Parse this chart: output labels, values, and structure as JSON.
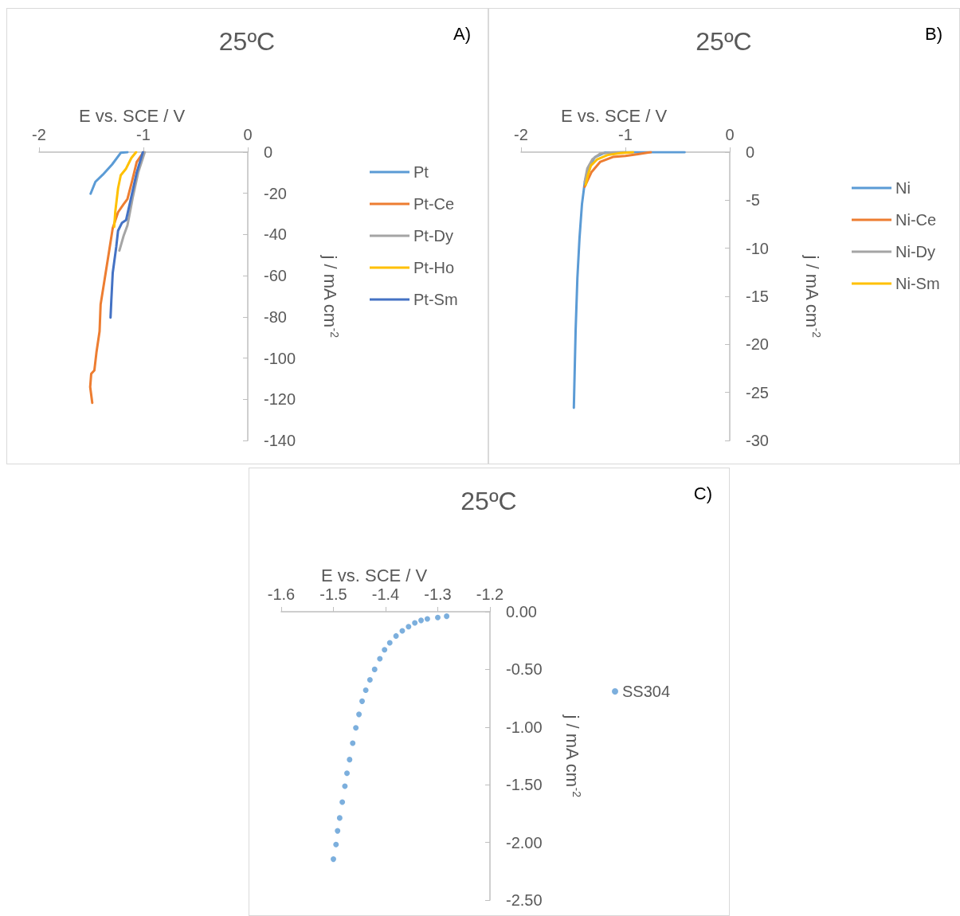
{
  "chart_data": [
    {
      "type": "line",
      "title": "25ºC",
      "annotations": [
        "A)"
      ],
      "xlabel": "E vs. SCE / V",
      "ylabel": "j / mA cm$^{-2}$",
      "xlim": [
        -2,
        0
      ],
      "xticks": [
        -2,
        -1,
        0
      ],
      "ylim": [
        -140,
        0
      ],
      "yticks": [
        0,
        -20,
        -40,
        -60,
        -80,
        -100,
        -120,
        -140
      ],
      "grid": false,
      "legend": "right",
      "marker": "none",
      "line_style": "solid",
      "series": [
        {
          "name": "Pt",
          "color": "#5b9bd5",
          "x": [
            -1.153,
            -1.217,
            -1.3,
            -1.39,
            -1.46,
            -1.506
          ],
          "values": [
            0,
            -0.3,
            -6,
            -11,
            -14.4,
            -20.2
          ]
        },
        {
          "name": "Pt-Ce",
          "color": "#ed7d31",
          "x": [
            -1.0,
            -1.064,
            -1.107,
            -1.153,
            -1.19,
            -1.243,
            -1.294,
            -1.33,
            -1.37,
            -1.41,
            -1.42,
            -1.45,
            -1.47,
            -1.5,
            -1.51,
            -1.49
          ],
          "values": [
            0,
            -4.8,
            -13.8,
            -22.8,
            -25.3,
            -29.2,
            -36.9,
            -48.5,
            -61.3,
            -74,
            -87,
            -97.3,
            -106,
            -107.6,
            -114,
            -121.7
          ]
        },
        {
          "name": "Pt-Dy",
          "color": "#a5a5a5",
          "x": [
            -0.987,
            -1.05,
            -1.1,
            -1.153,
            -1.19,
            -1.23
          ],
          "values": [
            0,
            -9.9,
            -21.5,
            -35.6,
            -40.7,
            -47.8
          ]
        },
        {
          "name": "Pt-Ho",
          "color": "#ffc000",
          "x": [
            -1.07,
            -1.115,
            -1.166,
            -1.217,
            -1.243,
            -1.27,
            -1.28
          ],
          "values": [
            0,
            -2.8,
            -8,
            -11.2,
            -17.6,
            -29.2,
            -36.3
          ]
        },
        {
          "name": "Pt-Sm",
          "color": "#4472c4",
          "x": [
            -1.005,
            -1.064,
            -1.115,
            -1.166,
            -1.205,
            -1.243,
            -1.26,
            -1.294,
            -1.307,
            -1.315
          ],
          "values": [
            0,
            -9.9,
            -21.5,
            -33,
            -34.3,
            -38.2,
            -45.9,
            -58.7,
            -71.6,
            -80.3
          ]
        }
      ]
    },
    {
      "type": "line",
      "title": "25ºC",
      "annotations": [
        "B)"
      ],
      "xlabel": "E vs. SCE / V",
      "ylabel": "j / mA cm$^{-2}$",
      "xlim": [
        -2,
        0
      ],
      "xticks": [
        -2,
        -1,
        0
      ],
      "ylim": [
        -30,
        0
      ],
      "yticks": [
        0,
        -5,
        -10,
        -15,
        -20,
        -25,
        -30
      ],
      "grid": false,
      "legend": "right",
      "marker": "none",
      "line_style": "solid",
      "series": [
        {
          "name": "Ni",
          "color": "#5b9bd5",
          "x": [
            -0.433,
            -1.0,
            -1.195,
            -1.29,
            -1.355,
            -1.39,
            -1.416,
            -1.44,
            -1.46,
            -1.477,
            -1.494
          ],
          "values": [
            0,
            0,
            -0.05,
            -0.5,
            -1.6,
            -3.2,
            -5.4,
            -9,
            -13.1,
            -18.6,
            -26.6
          ]
        },
        {
          "name": "Ni-Ce",
          "color": "#ed7d31",
          "x": [
            -0.757,
            -0.878,
            -1.0,
            -1.12,
            -1.24,
            -1.326,
            -1.36,
            -1.39
          ],
          "values": [
            0,
            -0.2,
            -0.4,
            -0.5,
            -1.0,
            -2.1,
            -2.9,
            -3.6
          ]
        },
        {
          "name": "Ni-Dy",
          "color": "#a5a5a5",
          "x": [
            -1.0,
            -1.12,
            -1.24,
            -1.316,
            -1.365,
            -1.39
          ],
          "values": [
            0,
            -0.03,
            -0.15,
            -0.75,
            -1.7,
            -3.1
          ]
        },
        {
          "name": "Ni-Sm",
          "color": "#ffc000",
          "x": [
            -0.927,
            -1.05,
            -1.17,
            -1.27,
            -1.33,
            -1.36,
            -1.38
          ],
          "values": [
            0,
            -0.1,
            -0.3,
            -0.75,
            -1.4,
            -2.4,
            -3.4
          ]
        }
      ]
    },
    {
      "type": "scatter",
      "title": "25ºC",
      "annotations": [
        "C)"
      ],
      "xlabel": "E vs. SCE / V",
      "ylabel": "j / mA cm$^{-2}$",
      "xlim": [
        -1.6,
        -1.2
      ],
      "xticks": [
        -1.6,
        -1.5,
        -1.4,
        -1.3,
        -1.2
      ],
      "ylim": [
        -2.5,
        0
      ],
      "yticks": [
        {
          "value": 0,
          "label": "0.00"
        },
        {
          "value": -0.5,
          "label": "-0.50"
        },
        {
          "value": -1,
          "label": "-1.00"
        },
        {
          "value": -1.5,
          "label": "-1.50"
        },
        {
          "value": -2,
          "label": "-2.00"
        },
        {
          "value": -2.5,
          "label": "-2.50"
        }
      ],
      "grid": false,
      "legend": "right",
      "marker": "circle",
      "series": [
        {
          "name": "SS304",
          "color": "#5b9bd5",
          "x": [
            -1.283,
            -1.3,
            -1.32,
            -1.332,
            -1.344,
            -1.356,
            -1.368,
            -1.38,
            -1.392,
            -1.402,
            -1.411,
            -1.421,
            -1.43,
            -1.438,
            -1.445,
            -1.451,
            -1.457,
            -1.463,
            -1.469,
            -1.474,
            -1.478,
            -1.483,
            -1.488,
            -1.492,
            -1.495,
            -1.5
          ],
          "values": [
            -0.039,
            -0.05,
            -0.062,
            -0.075,
            -0.097,
            -0.13,
            -0.166,
            -0.21,
            -0.269,
            -0.33,
            -0.407,
            -0.5,
            -0.591,
            -0.68,
            -0.776,
            -0.89,
            -1.006,
            -1.14,
            -1.282,
            -1.4,
            -1.512,
            -1.65,
            -1.788,
            -1.9,
            -2.018,
            -2.145
          ]
        }
      ]
    }
  ]
}
